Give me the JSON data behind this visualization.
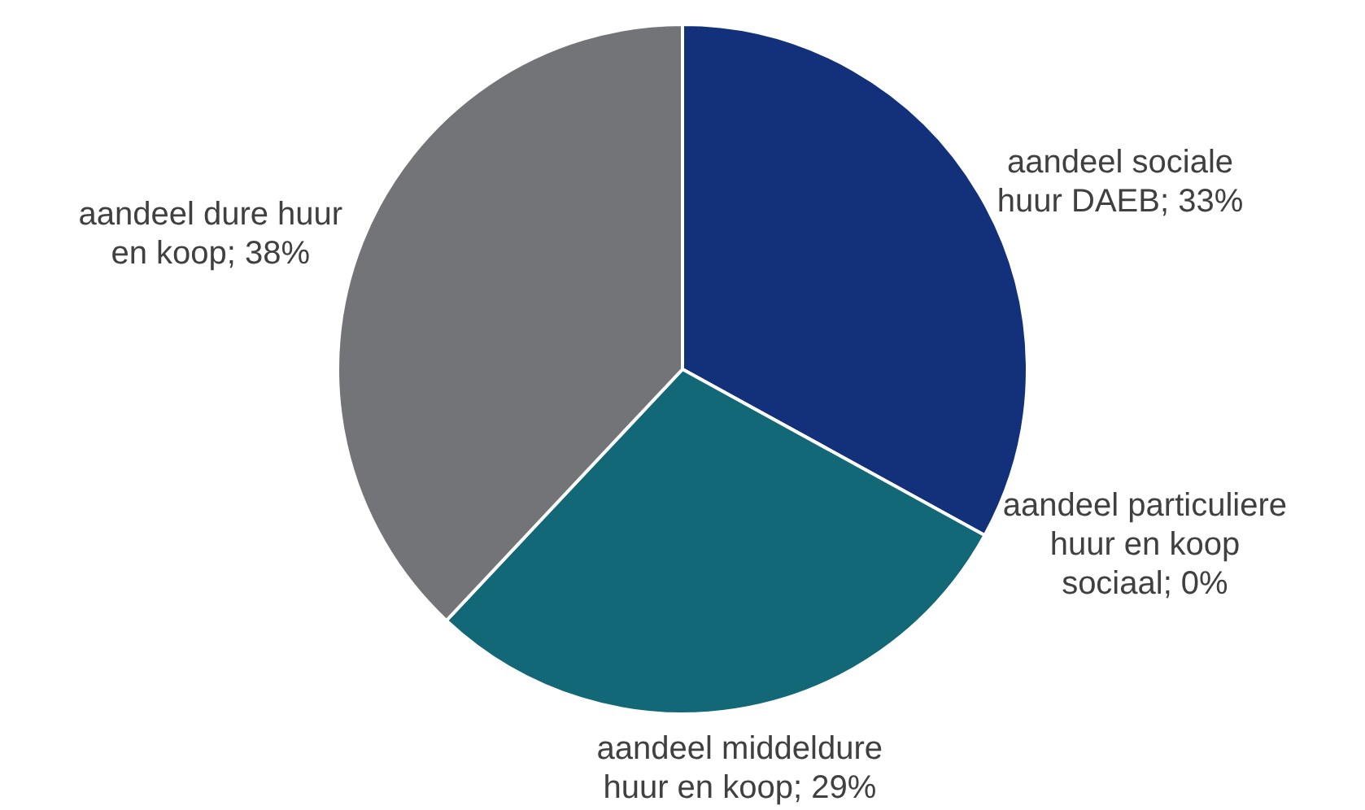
{
  "chart_data": {
    "type": "pie",
    "categories": [
      null,
      null,
      null,
      null
    ],
    "values": [
      33,
      0,
      29,
      38
    ],
    "colors": [
      "#12317a",
      "#4f81bd",
      "#136878",
      "#737478"
    ],
    "value_labels": [
      "aandeel sociale\nhuur DAEB; 33%",
      "aandeel particuliere\nhuur en koop\nsociaal; 0%",
      "aandeel middeldure\nhuur en koop; 29%",
      "aandeel dure huur\nen koop; 38%"
    ],
    "legend": false
  }
}
